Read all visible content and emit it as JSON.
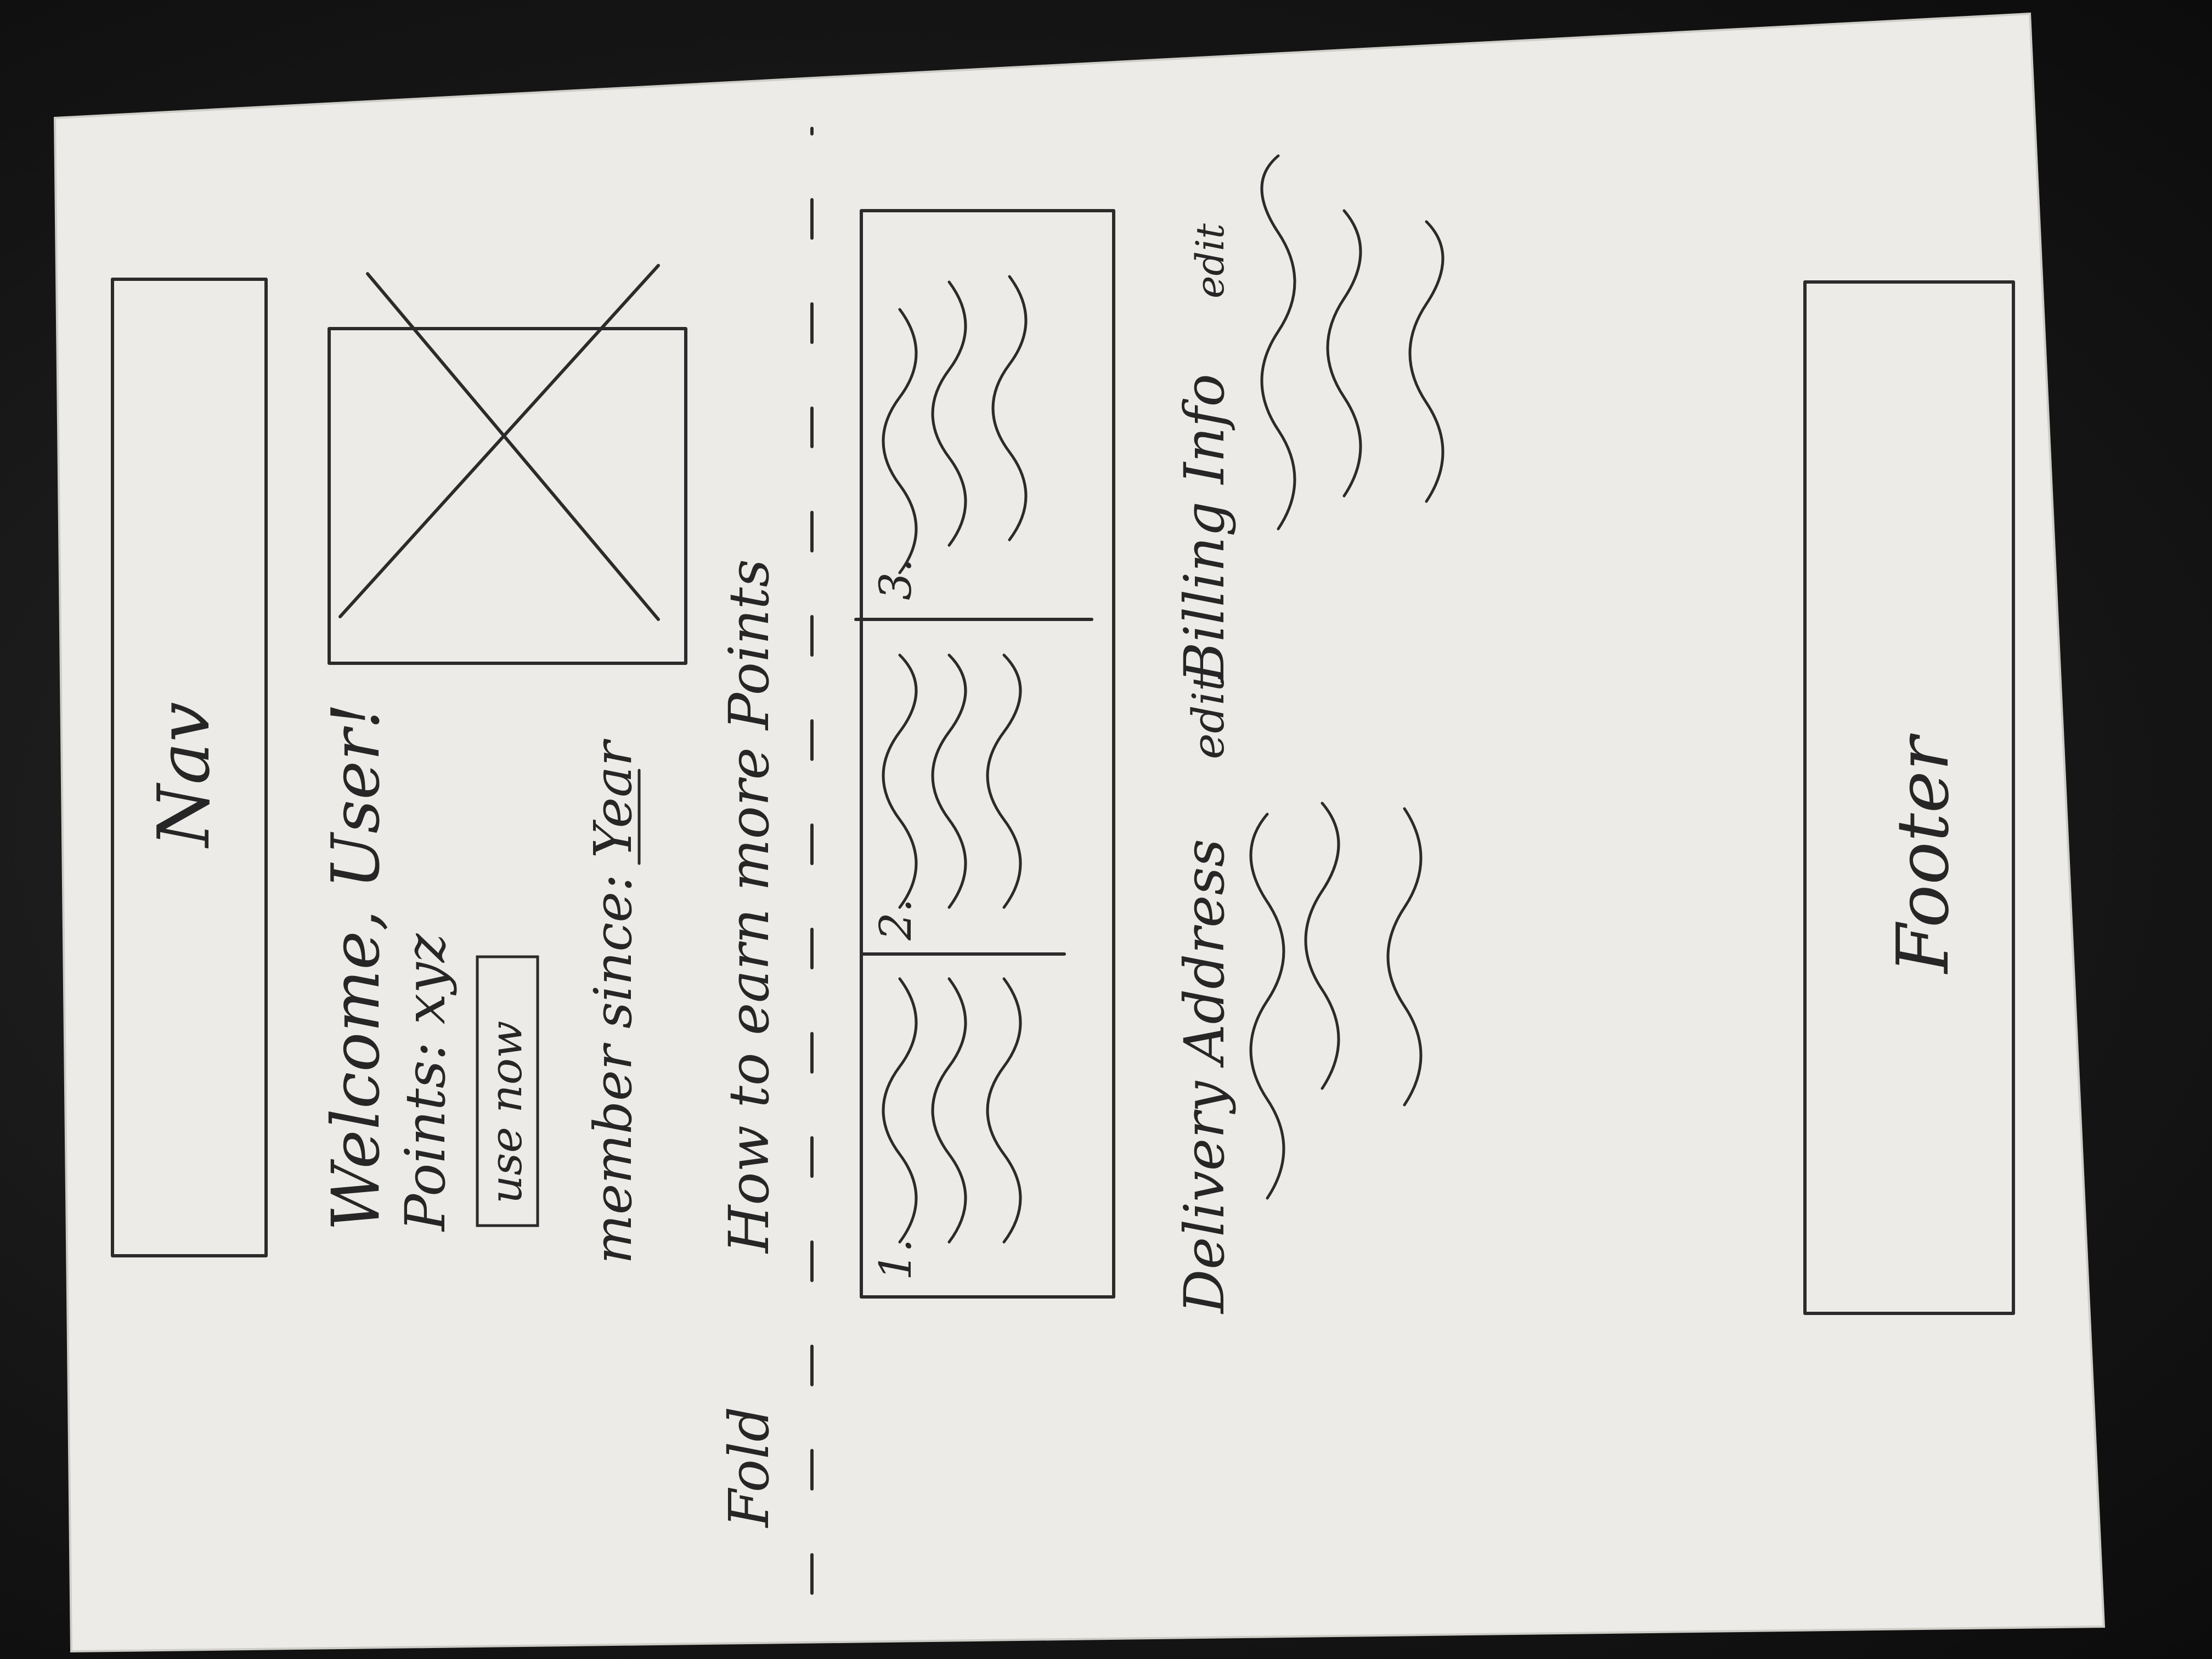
{
  "sketch": {
    "nav_label": "Nav",
    "welcome_text": "Welcome, User!",
    "points_text": "Points: xyz",
    "use_now_label": "use now",
    "member_since_text": "member since:",
    "member_since_value": "Year",
    "earn_points_heading": "How to earn more Points",
    "fold_label": "Fold",
    "steps": [
      {
        "number": "1."
      },
      {
        "number": "2."
      },
      {
        "number": "3."
      }
    ],
    "delivery_label": "Delivery Address",
    "delivery_edit": "edit",
    "billing_label": "Billing Info",
    "billing_edit": "edit",
    "footer_label": "Footer"
  }
}
